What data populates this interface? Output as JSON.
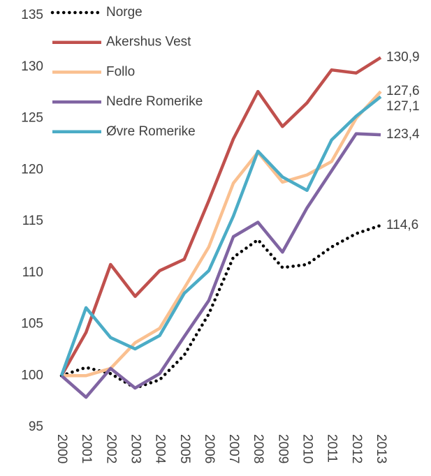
{
  "chart_data": {
    "type": "line",
    "x": [
      "2000",
      "2001",
      "2002",
      "2003",
      "2004",
      "2005",
      "2006",
      "2007",
      "2008",
      "2009",
      "2010",
      "2011",
      "2012",
      "2013"
    ],
    "ylim": [
      95,
      135
    ],
    "yticks": [
      95,
      100,
      105,
      110,
      115,
      120,
      125,
      130,
      135
    ],
    "grid": false,
    "legend": "upper-left",
    "series": [
      {
        "name": "Norge",
        "color": "#000000",
        "dash": "dotted",
        "values": [
          100,
          100.8,
          100.2,
          98.8,
          99.6,
          102,
          106,
          111.5,
          113.2,
          110.5,
          110.8,
          112.5,
          113.8,
          114.6
        ],
        "value_labels": [
          null,
          null,
          null,
          null,
          null,
          null,
          null,
          null,
          null,
          null,
          null,
          null,
          null,
          "114,6"
        ]
      },
      {
        "name": "Akershus Vest",
        "color": "#c0504d",
        "values": [
          100,
          104.2,
          110.8,
          107.7,
          110.2,
          111.3,
          117,
          123,
          127.6,
          124.2,
          126.5,
          129.7,
          129.4,
          130.9
        ],
        "value_labels": [
          null,
          null,
          null,
          null,
          null,
          null,
          null,
          null,
          null,
          null,
          null,
          null,
          null,
          "130,9"
        ]
      },
      {
        "name": "Follo",
        "color": "#fac090",
        "values": [
          100,
          100,
          100.7,
          103.2,
          104.6,
          108.5,
          112.5,
          118.7,
          121.7,
          118.8,
          119.5,
          120.8,
          125,
          127.6
        ],
        "value_labels": [
          null,
          null,
          null,
          null,
          null,
          null,
          null,
          null,
          null,
          null,
          null,
          null,
          null,
          "127,6"
        ]
      },
      {
        "name": "Nedre Romerike",
        "color": "#8064a2",
        "values": [
          100,
          97.9,
          100.7,
          98.8,
          100.2,
          103.8,
          107.3,
          113.5,
          114.9,
          112,
          116.3,
          119.9,
          123.5,
          123.4
        ],
        "value_labels": [
          null,
          null,
          null,
          null,
          null,
          null,
          null,
          null,
          null,
          null,
          null,
          null,
          null,
          "123,4"
        ]
      },
      {
        "name": "Øvre Romerike",
        "color": "#4bacc6",
        "values": [
          100,
          106.6,
          103.7,
          102.6,
          103.9,
          108,
          110.2,
          115.5,
          121.8,
          119.3,
          118,
          122.9,
          125.2,
          127.1
        ],
        "value_labels": [
          null,
          null,
          null,
          null,
          null,
          null,
          null,
          null,
          null,
          null,
          null,
          null,
          null,
          "127,1"
        ]
      }
    ]
  }
}
